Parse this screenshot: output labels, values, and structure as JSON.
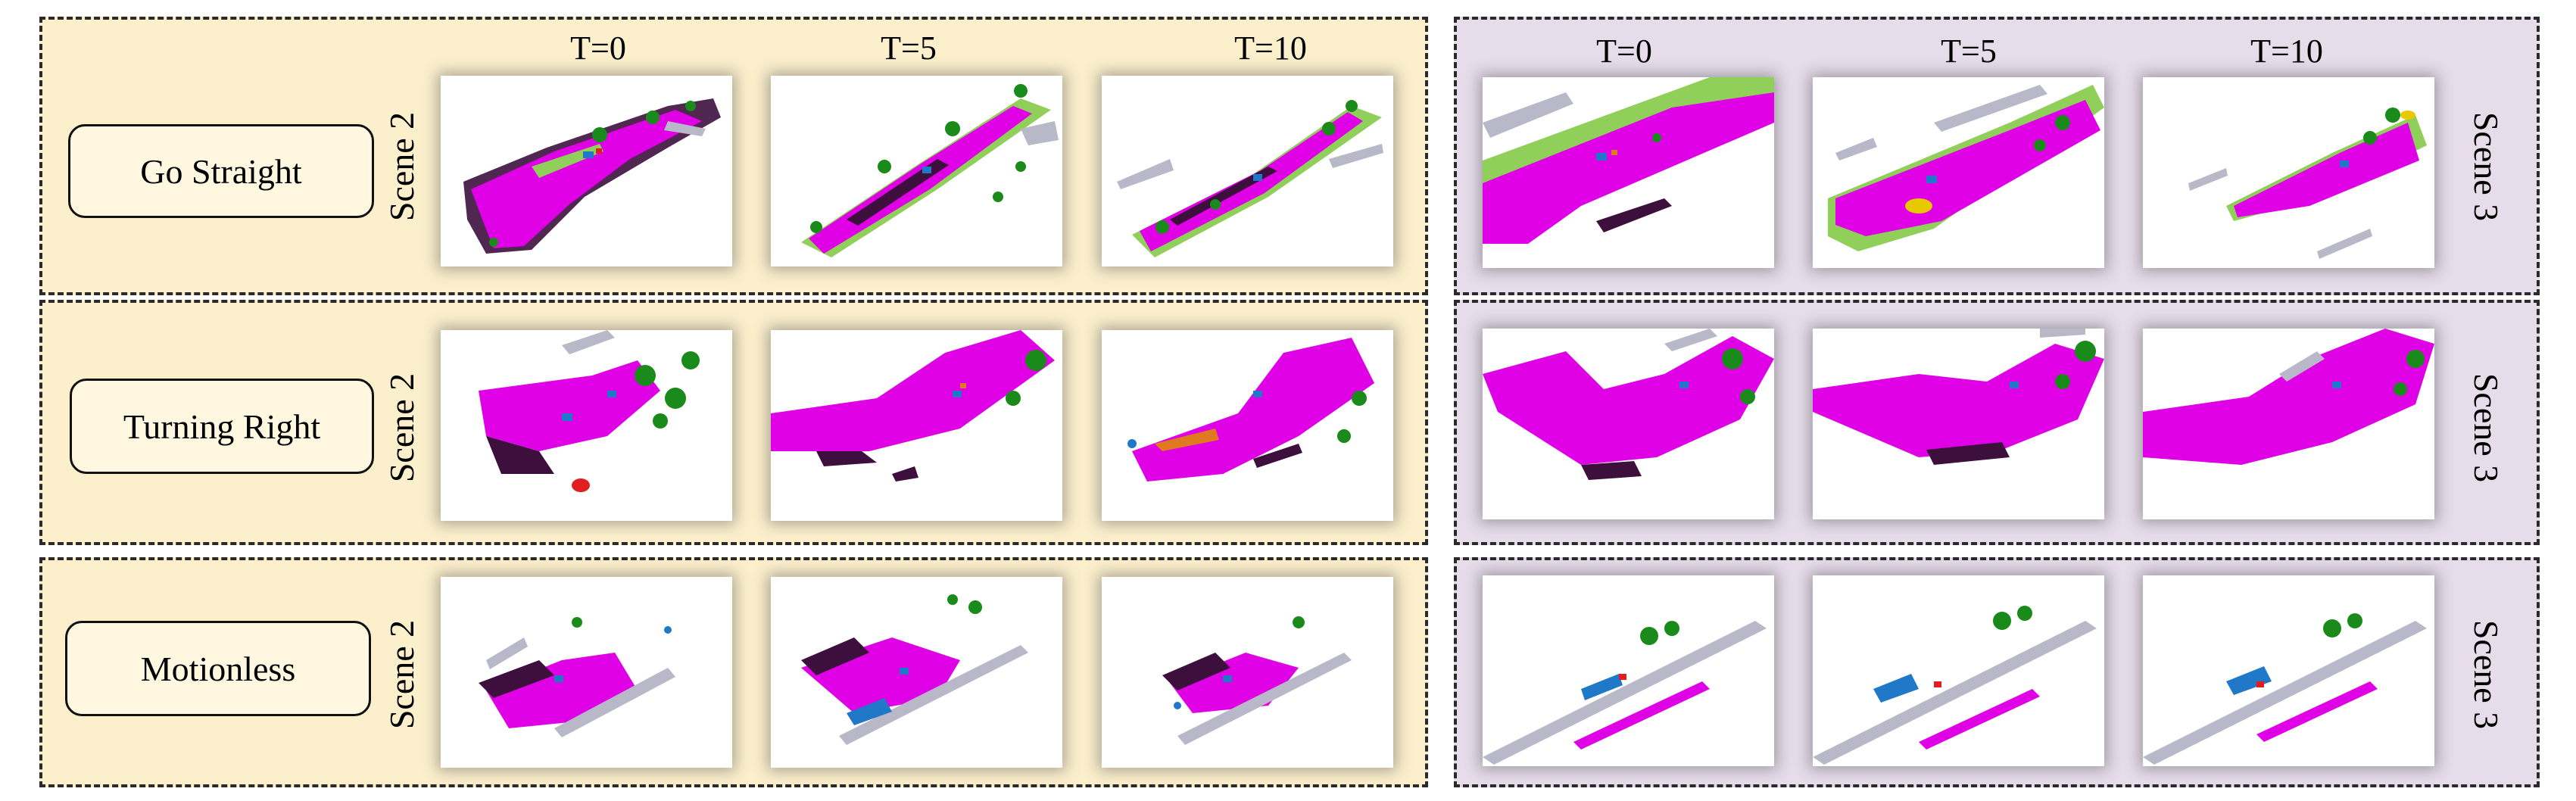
{
  "time_headers": [
    "T=0",
    "T=5",
    "T=10"
  ],
  "rows": [
    {
      "action": "Go Straight",
      "left_scene": "Scene 2",
      "right_scene": "Scene 3"
    },
    {
      "action": "Turning Right",
      "left_scene": "Scene 2",
      "right_scene": "Scene 3"
    },
    {
      "action": "Motionless",
      "left_scene": "Scene 2",
      "right_scene": "Scene 3"
    }
  ],
  "colors": {
    "left_panel_bg": "#fbefcc",
    "right_panel_bg": "#e6dcea",
    "road": "#e000e6",
    "vegetation": "#1a8a1a",
    "terrain": "#8fcf5a",
    "sidewalk": "#3d0f3d",
    "building": "#b8b8c8",
    "car": "#1f78c8",
    "truck": "#e8c800",
    "person": "#e02020",
    "other_vehicle": "#e07a20"
  }
}
